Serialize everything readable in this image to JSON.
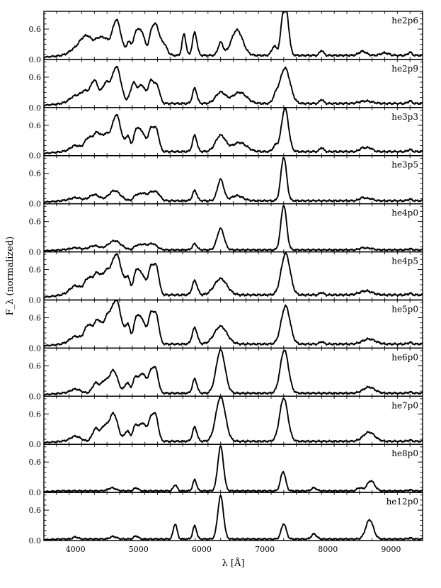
{
  "chart_data": {
    "type": "line",
    "xlabel": "λ [Å]",
    "ylabel": "F_λ (normalized)",
    "xlim": [
      3500,
      9500
    ],
    "ylim": [
      0,
      0.95
    ],
    "x_ticks": [
      4000,
      5000,
      6000,
      7000,
      8000,
      9000
    ],
    "x_tick_labels": [
      "4000",
      "5000",
      "6000",
      "7000",
      "8000",
      "9000"
    ],
    "y_ticks": [
      0.0,
      0.6
    ],
    "y_tick_labels": [
      "0.0",
      "0.6"
    ],
    "grid": false,
    "panels": [
      {
        "name": "he2p6",
        "base": 0.08,
        "lines": [
          [
            3980,
            80,
            0.12
          ],
          [
            4100,
            60,
            0.22
          ],
          [
            4200,
            60,
            0.3
          ],
          [
            4350,
            70,
            0.3
          ],
          [
            4470,
            60,
            0.25
          ],
          [
            4650,
            70,
            0.7
          ],
          [
            4850,
            40,
            0.25
          ],
          [
            4960,
            40,
            0.4
          ],
          [
            5050,
            50,
            0.45
          ],
          [
            5200,
            40,
            0.35
          ],
          [
            5280,
            50,
            0.55
          ],
          [
            5400,
            50,
            0.22
          ],
          [
            5720,
            30,
            0.42
          ],
          [
            5890,
            35,
            0.45
          ],
          [
            6300,
            40,
            0.25
          ],
          [
            6560,
            90,
            0.5
          ],
          [
            7150,
            40,
            0.18
          ],
          [
            7290,
            40,
            0.7
          ],
          [
            7350,
            40,
            0.65
          ],
          [
            7900,
            30,
            0.1
          ],
          [
            8550,
            60,
            0.08
          ],
          [
            8900,
            60,
            0.05
          ],
          [
            9300,
            30,
            0.06
          ]
        ]
      },
      {
        "name": "he2p9",
        "base": 0.08,
        "lines": [
          [
            4000,
            90,
            0.15
          ],
          [
            4150,
            60,
            0.2
          ],
          [
            4300,
            60,
            0.45
          ],
          [
            4480,
            60,
            0.38
          ],
          [
            4650,
            70,
            0.72
          ],
          [
            4920,
            50,
            0.4
          ],
          [
            5050,
            50,
            0.35
          ],
          [
            5200,
            50,
            0.45
          ],
          [
            5300,
            40,
            0.3
          ],
          [
            5890,
            35,
            0.3
          ],
          [
            6300,
            80,
            0.22
          ],
          [
            6600,
            110,
            0.22
          ],
          [
            7170,
            40,
            0.12
          ],
          [
            7320,
            80,
            0.7
          ],
          [
            7900,
            30,
            0.08
          ],
          [
            8600,
            100,
            0.05
          ],
          [
            9300,
            30,
            0.05
          ]
        ]
      },
      {
        "name": "he3p3",
        "base": 0.08,
        "lines": [
          [
            4000,
            80,
            0.12
          ],
          [
            4200,
            60,
            0.25
          ],
          [
            4340,
            60,
            0.35
          ],
          [
            4480,
            60,
            0.3
          ],
          [
            4650,
            70,
            0.72
          ],
          [
            4830,
            40,
            0.28
          ],
          [
            4960,
            40,
            0.38
          ],
          [
            5050,
            50,
            0.38
          ],
          [
            5200,
            50,
            0.45
          ],
          [
            5290,
            40,
            0.35
          ],
          [
            5890,
            35,
            0.32
          ],
          [
            6300,
            80,
            0.32
          ],
          [
            6600,
            110,
            0.18
          ],
          [
            7170,
            40,
            0.12
          ],
          [
            7320,
            55,
            0.86
          ],
          [
            7900,
            30,
            0.08
          ],
          [
            8550,
            50,
            0.07
          ],
          [
            8660,
            50,
            0.07
          ],
          [
            9300,
            30,
            0.04
          ]
        ]
      },
      {
        "name": "he3p5",
        "base": 0.06,
        "lines": [
          [
            4000,
            90,
            0.06
          ],
          [
            4300,
            80,
            0.12
          ],
          [
            4620,
            90,
            0.2
          ],
          [
            4960,
            40,
            0.1
          ],
          [
            5060,
            50,
            0.14
          ],
          [
            5200,
            60,
            0.16
          ],
          [
            5300,
            50,
            0.12
          ],
          [
            5890,
            35,
            0.2
          ],
          [
            6300,
            50,
            0.42
          ],
          [
            6560,
            90,
            0.1
          ],
          [
            7300,
            45,
            0.86
          ],
          [
            8550,
            50,
            0.06
          ],
          [
            8670,
            50,
            0.04
          ],
          [
            9300,
            30,
            0.03
          ]
        ]
      },
      {
        "name": "he4p0",
        "base": 0.04,
        "lines": [
          [
            4000,
            90,
            0.04
          ],
          [
            4300,
            80,
            0.08
          ],
          [
            4620,
            100,
            0.18
          ],
          [
            4960,
            40,
            0.06
          ],
          [
            5060,
            60,
            0.1
          ],
          [
            5220,
            70,
            0.12
          ],
          [
            5890,
            35,
            0.12
          ],
          [
            6300,
            55,
            0.42
          ],
          [
            7300,
            45,
            0.88
          ],
          [
            8550,
            50,
            0.04
          ],
          [
            8670,
            50,
            0.03
          ],
          [
            9300,
            30,
            0.02
          ]
        ]
      },
      {
        "name": "he4p5",
        "base": 0.1,
        "lines": [
          [
            4000,
            90,
            0.18
          ],
          [
            4200,
            60,
            0.3
          ],
          [
            4340,
            60,
            0.4
          ],
          [
            4480,
            60,
            0.38
          ],
          [
            4650,
            80,
            0.8
          ],
          [
            4830,
            40,
            0.3
          ],
          [
            4960,
            40,
            0.42
          ],
          [
            5050,
            50,
            0.4
          ],
          [
            5200,
            50,
            0.55
          ],
          [
            5290,
            40,
            0.45
          ],
          [
            5890,
            40,
            0.28
          ],
          [
            6300,
            100,
            0.32
          ],
          [
            7330,
            70,
            0.82
          ],
          [
            7900,
            30,
            0.05
          ],
          [
            8600,
            100,
            0.08
          ],
          [
            9300,
            30,
            0.03
          ]
        ]
      },
      {
        "name": "he5p0",
        "base": 0.08,
        "lines": [
          [
            4000,
            90,
            0.15
          ],
          [
            4200,
            60,
            0.35
          ],
          [
            4350,
            60,
            0.45
          ],
          [
            4500,
            60,
            0.45
          ],
          [
            4650,
            75,
            0.85
          ],
          [
            4830,
            40,
            0.35
          ],
          [
            4960,
            40,
            0.45
          ],
          [
            5050,
            50,
            0.48
          ],
          [
            5200,
            50,
            0.6
          ],
          [
            5290,
            40,
            0.45
          ],
          [
            5890,
            40,
            0.32
          ],
          [
            6300,
            100,
            0.35
          ],
          [
            7330,
            70,
            0.75
          ],
          [
            7900,
            30,
            0.05
          ],
          [
            8650,
            100,
            0.1
          ],
          [
            9300,
            30,
            0.03
          ]
        ]
      },
      {
        "name": "he6p0",
        "base": 0.06,
        "lines": [
          [
            4000,
            80,
            0.08
          ],
          [
            4320,
            50,
            0.2
          ],
          [
            4450,
            50,
            0.2
          ],
          [
            4600,
            70,
            0.45
          ],
          [
            4820,
            40,
            0.2
          ],
          [
            4950,
            40,
            0.3
          ],
          [
            5060,
            50,
            0.38
          ],
          [
            5200,
            50,
            0.42
          ],
          [
            5280,
            40,
            0.35
          ],
          [
            5890,
            35,
            0.28
          ],
          [
            6300,
            70,
            0.85
          ],
          [
            7310,
            65,
            0.85
          ],
          [
            8650,
            90,
            0.12
          ],
          [
            9300,
            30,
            0.02
          ]
        ]
      },
      {
        "name": "he7p0",
        "base": 0.06,
        "lines": [
          [
            4000,
            80,
            0.1
          ],
          [
            4320,
            50,
            0.25
          ],
          [
            4450,
            50,
            0.25
          ],
          [
            4600,
            70,
            0.55
          ],
          [
            4820,
            40,
            0.2
          ],
          [
            4950,
            40,
            0.3
          ],
          [
            5060,
            50,
            0.35
          ],
          [
            5200,
            50,
            0.45
          ],
          [
            5280,
            40,
            0.38
          ],
          [
            5890,
            35,
            0.28
          ],
          [
            6300,
            75,
            0.88
          ],
          [
            7300,
            65,
            0.85
          ],
          [
            8650,
            90,
            0.18
          ],
          [
            9300,
            30,
            0.02
          ]
        ]
      },
      {
        "name": "he8p0",
        "base": 0.03,
        "lines": [
          [
            4580,
            60,
            0.06
          ],
          [
            4960,
            35,
            0.06
          ],
          [
            5580,
            30,
            0.12
          ],
          [
            5890,
            30,
            0.22
          ],
          [
            6300,
            45,
            0.88
          ],
          [
            7290,
            40,
            0.38
          ],
          [
            7780,
            40,
            0.06
          ],
          [
            8500,
            40,
            0.06
          ],
          [
            8680,
            60,
            0.2
          ],
          [
            9300,
            30,
            0.02
          ]
        ]
      },
      {
        "name": "he12p0",
        "base": 0.03,
        "lines": [
          [
            4000,
            40,
            0.04
          ],
          [
            4600,
            50,
            0.05
          ],
          [
            4960,
            35,
            0.06
          ],
          [
            5580,
            30,
            0.3
          ],
          [
            5890,
            30,
            0.26
          ],
          [
            6300,
            45,
            0.85
          ],
          [
            7300,
            40,
            0.3
          ],
          [
            7780,
            40,
            0.1
          ],
          [
            8660,
            60,
            0.38
          ],
          [
            9300,
            30,
            0.02
          ]
        ]
      }
    ]
  }
}
